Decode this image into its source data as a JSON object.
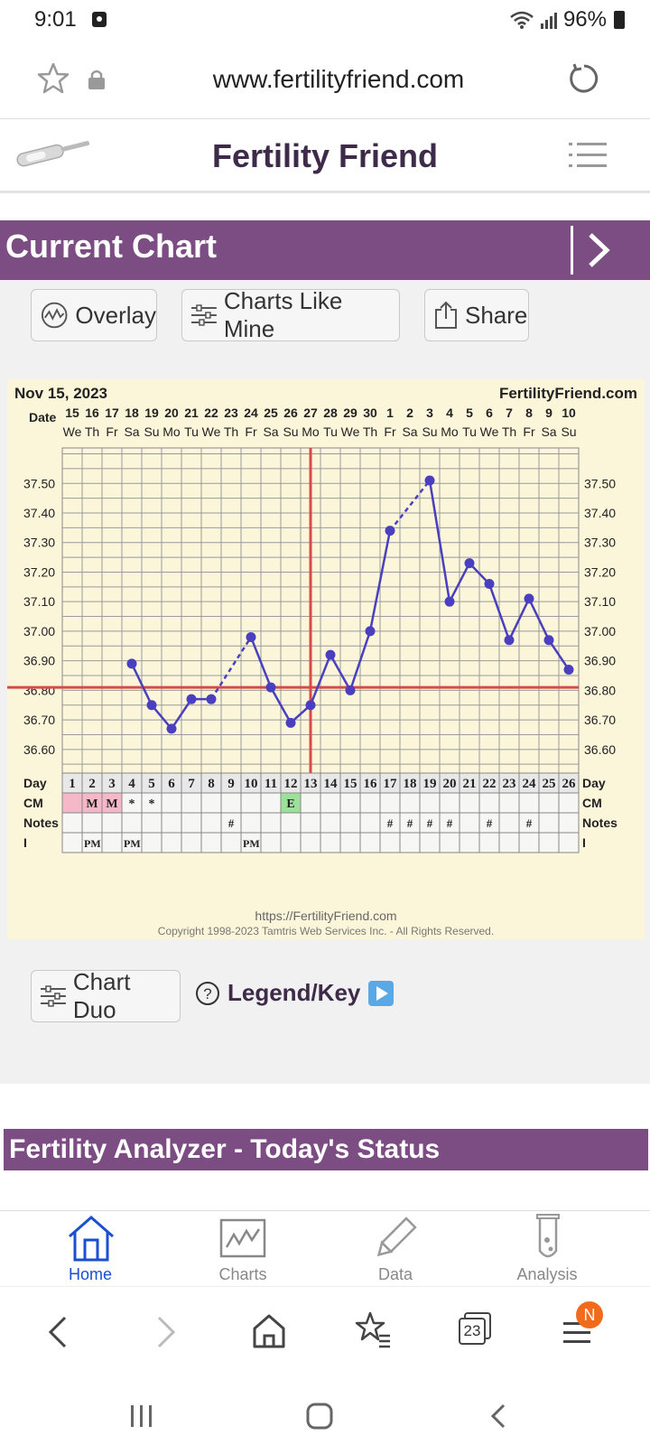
{
  "status_bar": {
    "time": "9:01",
    "battery": "96%"
  },
  "browser": {
    "url": "www.fertilityfriend.com",
    "tabs_count": "23",
    "menu_badge": "N"
  },
  "site": {
    "title": "Fertility Friend"
  },
  "current_chart": {
    "title": "Current Chart",
    "buttons": {
      "overlay": "Overlay",
      "charts_like_mine": "Charts Like Mine",
      "share": "Share"
    }
  },
  "chart_footer": {
    "url": "https://FertilityFriend.com",
    "copyright": "Copyright 1998-2023 Tamtris Web Services Inc. - All Rights Reserved."
  },
  "chart_actions": {
    "chart_duo": "Chart Duo",
    "legend": "Legend/Key"
  },
  "analyzer": {
    "title": "Fertility Analyzer - Today's Status"
  },
  "app_nav": {
    "home": "Home",
    "charts": "Charts",
    "data": "Data",
    "analysis": "Analysis"
  },
  "colors": {
    "brand_purple": "#7b4d82",
    "chart_bg": "#fbf5d9",
    "line": "#4a3fbf",
    "coverline": "#d84a4a",
    "active_nav": "#1a4fd0"
  },
  "chart_data": {
    "type": "line",
    "date_label": "Nov 15, 2023",
    "site_label": "FertilityFriend.com",
    "row_labels": {
      "date": "Date",
      "day": "Day",
      "cm": "CM",
      "notes": "Notes",
      "i": "I"
    },
    "dates": [
      "15",
      "16",
      "17",
      "18",
      "19",
      "20",
      "21",
      "22",
      "23",
      "24",
      "25",
      "26",
      "27",
      "28",
      "29",
      "30",
      "1",
      "2",
      "3",
      "4",
      "5",
      "6",
      "7",
      "8",
      "9",
      "10"
    ],
    "weekdays": [
      "We",
      "Th",
      "Fr",
      "Sa",
      "Su",
      "Mo",
      "Tu",
      "We",
      "Th",
      "Fr",
      "Sa",
      "Su",
      "Mo",
      "Tu",
      "We",
      "Th",
      "Fr",
      "Sa",
      "Su",
      "Mo",
      "Tu",
      "We",
      "Th",
      "Fr",
      "Sa",
      "Su"
    ],
    "days": [
      "1",
      "2",
      "3",
      "4",
      "5",
      "6",
      "7",
      "8",
      "9",
      "10",
      "11",
      "12",
      "13",
      "14",
      "15",
      "16",
      "17",
      "18",
      "19",
      "20",
      "21",
      "22",
      "23",
      "24",
      "25",
      "26"
    ],
    "y_ticks": [
      "37.50",
      "37.40",
      "37.30",
      "37.20",
      "37.10",
      "37.00",
      "36.90",
      "36.80",
      "36.70",
      "36.60"
    ],
    "ylim": [
      36.52,
      37.62
    ],
    "temps": [
      null,
      null,
      null,
      36.89,
      36.75,
      36.67,
      36.77,
      36.77,
      null,
      36.98,
      36.81,
      36.69,
      36.75,
      36.92,
      36.8,
      37.0,
      37.34,
      null,
      37.51,
      37.1,
      37.23,
      37.16,
      36.97,
      37.11,
      36.97,
      36.87
    ],
    "dashed_segments": [
      [
        8,
        10
      ],
      [
        17,
        19
      ]
    ],
    "coverline": 36.81,
    "ovulation_day": 13,
    "cm": [
      "",
      "M",
      "M",
      "*",
      "*",
      "",
      "",
      "",
      "",
      "",
      "",
      "E",
      "",
      "",
      "",
      "",
      "",
      "",
      "",
      "",
      "",
      "",
      "",
      "",
      "",
      ""
    ],
    "notes": [
      "",
      "",
      "",
      "",
      "",
      "",
      "",
      "",
      "#",
      "",
      "",
      "",
      "",
      "",
      "",
      "",
      "#",
      "#",
      "#",
      "#",
      "",
      "#",
      "",
      "#",
      "",
      ""
    ],
    "intercourse": [
      "",
      "PM",
      "",
      "PM",
      "",
      "",
      "",
      "",
      "",
      "PM",
      "",
      "",
      "",
      "",
      "",
      "",
      "",
      "",
      "",
      "",
      "",
      "",
      "",
      "",
      "",
      ""
    ]
  }
}
